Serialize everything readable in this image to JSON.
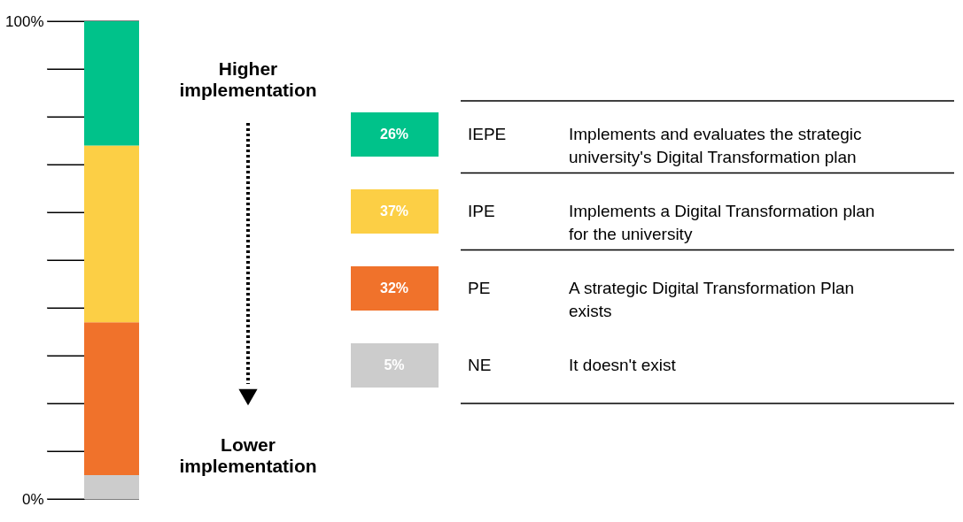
{
  "chart_data": {
    "type": "bar",
    "stacked": true,
    "categories": [
      null
    ],
    "series": [
      {
        "name": "NE",
        "color": "#cccccc",
        "values": [
          5
        ]
      },
      {
        "name": "PE",
        "color": "#f0722b",
        "values": [
          32
        ]
      },
      {
        "name": "IPE",
        "color": "#fccf45",
        "values": [
          37
        ]
      },
      {
        "name": "IEPE",
        "color": "#00c28a",
        "values": [
          26
        ]
      }
    ],
    "ylim": [
      0,
      100
    ],
    "yticks": [
      {
        "value": 0,
        "label": "0%"
      },
      {
        "value": 10,
        "label": null
      },
      {
        "value": 20,
        "label": null
      },
      {
        "value": 30,
        "label": null
      },
      {
        "value": 40,
        "label": null
      },
      {
        "value": 50,
        "label": null
      },
      {
        "value": 60,
        "label": null
      },
      {
        "value": 70,
        "label": null
      },
      {
        "value": 80,
        "label": null
      },
      {
        "value": 90,
        "label": null
      },
      {
        "value": 100,
        "label": "100%"
      }
    ],
    "grid": "y",
    "legend": "right",
    "annotations": [
      "Higher implementation",
      "Lower implementation",
      "Implements and evaluates the strategic university's Digital Transformation plan",
      "Implements a Digital Transformation plan for the university",
      "A strategic Digital Transformation Plan exists",
      "It doesn't exist",
      "26%",
      "37%",
      "32%",
      "5%"
    ]
  }
}
